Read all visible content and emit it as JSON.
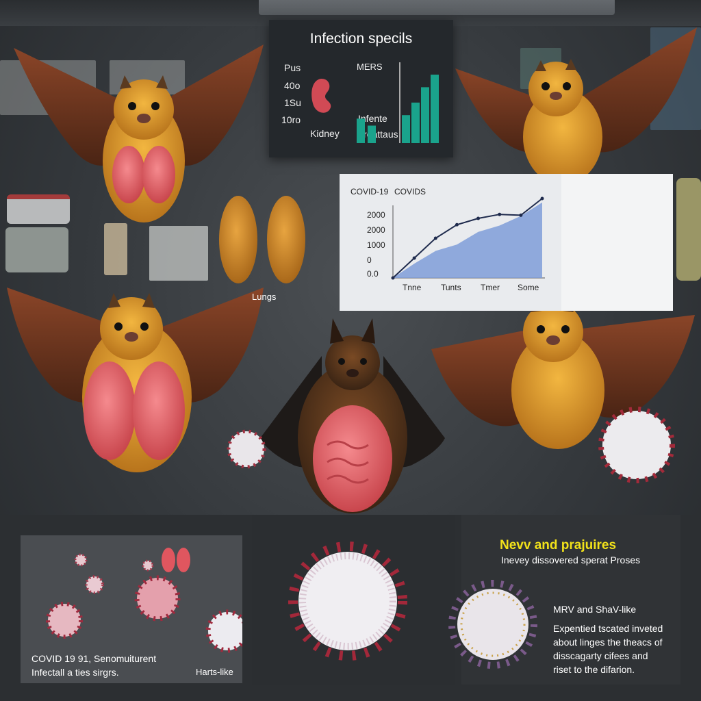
{
  "infection_panel": {
    "title": "Infection specils",
    "left_labels": [
      "Pus",
      "40o",
      "1Su",
      "10ro"
    ],
    "kidney_label": "Kidney",
    "mers_label": "MERS",
    "infente_label": "Infente",
    "treattaus_label": "Treattaus",
    "bars": [
      0.35,
      0.25,
      0.4,
      0.58,
      0.8,
      0.98
    ]
  },
  "lungs_label": "Lungs",
  "chart_data": {
    "type": "line",
    "title": "COVID-19",
    "subtitle": "COVIDS",
    "y_tick_labels": [
      "2000",
      "2000",
      "1000",
      "0",
      "0.0"
    ],
    "x_tick_labels": [
      "Tnne",
      "Tunts",
      "Tmer",
      "Some"
    ],
    "series": [
      {
        "values": [
          0.0,
          0.25,
          0.5,
          0.67,
          0.75,
          0.8,
          0.79,
          1.0
        ]
      },
      {
        "values": [
          0.0,
          0.18,
          0.34,
          0.42,
          0.58,
          0.66,
          0.78,
          0.95
        ]
      }
    ],
    "colors": {
      "line": "#1f2b4d",
      "area": "#7f9dd8"
    }
  },
  "bottom_left": {
    "caption_line1": "COVID 19 91, Senomuiturent",
    "caption_line2": "Infectall a ties sirgrs.",
    "side_label": "Harts-like"
  },
  "bottom_right": {
    "heading": "Nevv and prajuires",
    "subheading": "Inevey dissovered sperat Proses",
    "label": "MRV and ShaV-like",
    "body_lines": [
      "Expentied tscated inveted",
      "about linges the theacs of",
      "disscagarty cifees and",
      "riset to the difarion."
    ]
  },
  "colors": {
    "heading_yellow": "#f2e21a",
    "bat_fur": "#d99a2b",
    "bat_wing": "#7a3b22",
    "organ": "#e8656b",
    "teal_bar": "#1aa38c"
  }
}
